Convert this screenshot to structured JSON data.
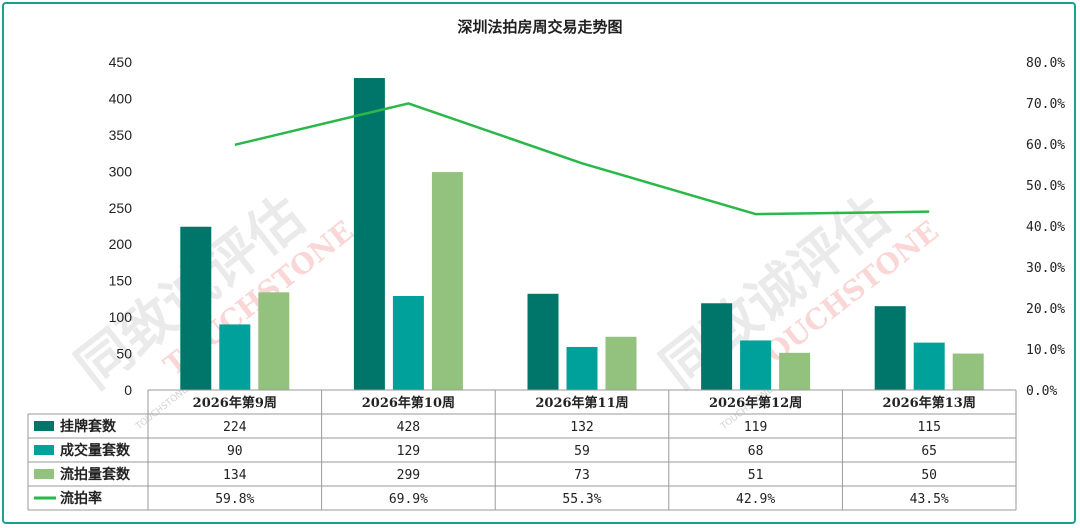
{
  "chart_data": {
    "type": "bar",
    "title": "深圳法拍房周交易走势图",
    "categories": [
      "2026年第9周",
      "2026年第10周",
      "2026年第11周",
      "2026年第12周",
      "2026年第13周"
    ],
    "series": [
      {
        "name": "挂牌套数",
        "type": "bar",
        "axis": "left",
        "color": "#00766b",
        "values": [
          224,
          428,
          132,
          119,
          115
        ],
        "labels": [
          "224",
          "428",
          "132",
          "119",
          "115"
        ]
      },
      {
        "name": "成交量套数",
        "type": "bar",
        "axis": "left",
        "color": "#00a19a",
        "values": [
          90,
          129,
          59,
          68,
          65
        ],
        "labels": [
          "90",
          "129",
          "59",
          "68",
          "65"
        ]
      },
      {
        "name": "流拍量套数",
        "type": "bar",
        "axis": "left",
        "color": "#92c27e",
        "values": [
          134,
          299,
          73,
          51,
          50
        ],
        "labels": [
          "134",
          "299",
          "73",
          "51",
          "50"
        ]
      },
      {
        "name": "流拍率",
        "type": "line",
        "axis": "right",
        "color": "#2ab84a",
        "values": [
          59.8,
          69.9,
          55.3,
          42.9,
          43.5
        ],
        "labels": [
          "59.8%",
          "69.9%",
          "55.3%",
          "42.9%",
          "43.5%"
        ]
      }
    ],
    "ylim_left": [
      0,
      450
    ],
    "ylim_right": [
      0,
      80
    ],
    "yticks_left": [
      "0",
      "50",
      "100",
      "150",
      "200",
      "250",
      "300",
      "350",
      "400",
      "450"
    ],
    "yticks_right": [
      "0.0%",
      "10.0%",
      "20.0%",
      "30.0%",
      "40.0%",
      "50.0%",
      "60.0%",
      "70.0%",
      "80.0%"
    ],
    "grid": false,
    "legend": "data-table"
  },
  "watermark": {
    "text_cn": "同致诚评估",
    "text_en": "TOUCHSTONE",
    "text_small": "TOUCHSTONE"
  },
  "colors": {
    "frame": "#1aa08f",
    "axis": "#9a9a9a"
  }
}
